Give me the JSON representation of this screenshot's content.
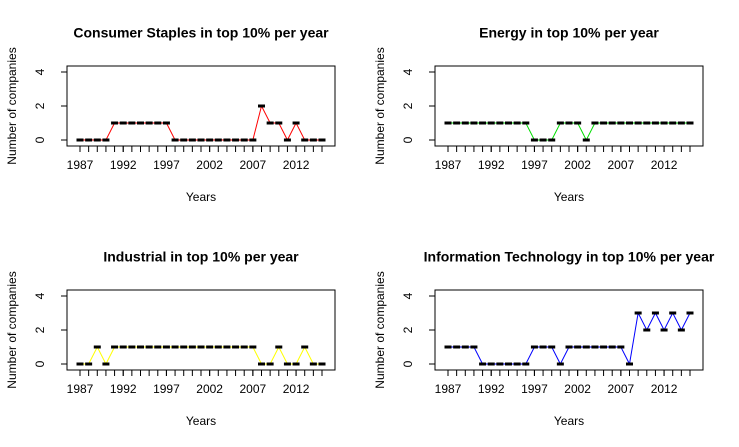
{
  "chart_data": [
    {
      "type": "line",
      "title": "Consumer Staples in top 10% per year",
      "xlabel": "Years",
      "ylabel": "Number of companies",
      "color": "#ff0000",
      "x": [
        1987,
        1988,
        1989,
        1990,
        1991,
        1992,
        1993,
        1994,
        1995,
        1996,
        1997,
        1998,
        1999,
        2000,
        2001,
        2002,
        2003,
        2004,
        2005,
        2006,
        2007,
        2008,
        2009,
        2010,
        2011,
        2012,
        2013,
        2014,
        2015
      ],
      "values": [
        0,
        0,
        0,
        0,
        1,
        1,
        1,
        1,
        1,
        1,
        1,
        0,
        0,
        0,
        0,
        0,
        0,
        0,
        0,
        0,
        0,
        2,
        1,
        1,
        0,
        1,
        0,
        0,
        0
      ],
      "xlim": [
        1987,
        2015
      ],
      "xticks": [
        1987,
        1992,
        1997,
        2002,
        2007,
        2012
      ],
      "ylim": [
        0,
        4
      ],
      "yticks": [
        0,
        2,
        4
      ]
    },
    {
      "type": "line",
      "title": "Energy in top 10% per year",
      "xlabel": "Years",
      "ylabel": "Number of companies",
      "color": "#00dd00",
      "x": [
        1987,
        1988,
        1989,
        1990,
        1991,
        1992,
        1993,
        1994,
        1995,
        1996,
        1997,
        1998,
        1999,
        2000,
        2001,
        2002,
        2003,
        2004,
        2005,
        2006,
        2007,
        2008,
        2009,
        2010,
        2011,
        2012,
        2013,
        2014,
        2015
      ],
      "values": [
        1,
        1,
        1,
        1,
        1,
        1,
        1,
        1,
        1,
        1,
        0,
        0,
        0,
        1,
        1,
        1,
        0,
        1,
        1,
        1,
        1,
        1,
        1,
        1,
        1,
        1,
        1,
        1,
        1
      ],
      "xlim": [
        1987,
        2015
      ],
      "xticks": [
        1987,
        1992,
        1997,
        2002,
        2007,
        2012
      ],
      "ylim": [
        0,
        4
      ],
      "yticks": [
        0,
        2,
        4
      ]
    },
    {
      "type": "line",
      "title": "Industrial in top 10% per year",
      "xlabel": "Years",
      "ylabel": "Number of companies",
      "color": "#ffff00",
      "x": [
        1987,
        1988,
        1989,
        1990,
        1991,
        1992,
        1993,
        1994,
        1995,
        1996,
        1997,
        1998,
        1999,
        2000,
        2001,
        2002,
        2003,
        2004,
        2005,
        2006,
        2007,
        2008,
        2009,
        2010,
        2011,
        2012,
        2013,
        2014,
        2015
      ],
      "values": [
        0,
        0,
        1,
        0,
        1,
        1,
        1,
        1,
        1,
        1,
        1,
        1,
        1,
        1,
        1,
        1,
        1,
        1,
        1,
        1,
        1,
        0,
        0,
        1,
        0,
        0,
        1,
        0,
        0
      ],
      "xlim": [
        1987,
        2015
      ],
      "xticks": [
        1987,
        1992,
        1997,
        2002,
        2007,
        2012
      ],
      "ylim": [
        0,
        4
      ],
      "yticks": [
        0,
        2,
        4
      ]
    },
    {
      "type": "line",
      "title": "Information Technology in top 10% per year",
      "xlabel": "Years",
      "ylabel": "Number of companies",
      "color": "#0000ff",
      "x": [
        1987,
        1988,
        1989,
        1990,
        1991,
        1992,
        1993,
        1994,
        1995,
        1996,
        1997,
        1998,
        1999,
        2000,
        2001,
        2002,
        2003,
        2004,
        2005,
        2006,
        2007,
        2008,
        2009,
        2010,
        2011,
        2012,
        2013,
        2014,
        2015
      ],
      "values": [
        1,
        1,
        1,
        1,
        0,
        0,
        0,
        0,
        0,
        0,
        1,
        1,
        1,
        0,
        1,
        1,
        1,
        1,
        1,
        1,
        1,
        0,
        3,
        2,
        3,
        2,
        3,
        2,
        3
      ],
      "xlim": [
        1987,
        2015
      ],
      "xticks": [
        1987,
        1992,
        1997,
        2002,
        2007,
        2012
      ],
      "ylim": [
        0,
        4
      ],
      "yticks": [
        0,
        2,
        4
      ]
    }
  ]
}
